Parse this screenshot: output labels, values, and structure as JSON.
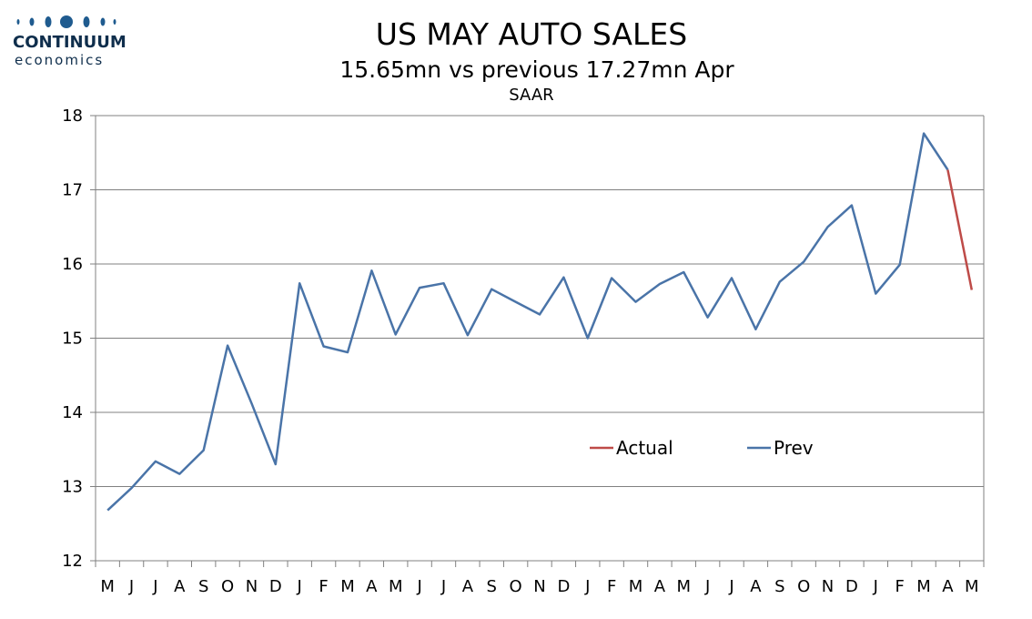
{
  "logo": {
    "name": "CONTINUUM",
    "sub": "economics"
  },
  "colors": {
    "actual": "#be4b48",
    "prev": "#4a74a8",
    "grid": "#808080",
    "logo": "#1f5b8f"
  },
  "chart_data": {
    "type": "line",
    "title": "US MAY AUTO SALES",
    "subtitle": "15.65mn vs previous 17.27mn Apr",
    "subtitle2": "SAAR",
    "xlabel": "",
    "ylabel": "",
    "ylim": [
      12,
      18
    ],
    "yticks": [
      12,
      13,
      14,
      15,
      16,
      17,
      18
    ],
    "grid": true,
    "legend_position": "center-right",
    "categories": [
      "M",
      "J",
      "J",
      "A",
      "S",
      "O",
      "N",
      "D",
      "J",
      "F",
      "M",
      "A",
      "M",
      "J",
      "J",
      "A",
      "S",
      "O",
      "N",
      "D",
      "J",
      "F",
      "M",
      "A",
      "M",
      "J",
      "J",
      "A",
      "S",
      "O",
      "N",
      "D",
      "J",
      "F",
      "M",
      "A",
      "M"
    ],
    "series": [
      {
        "name": "Actual",
        "color": "#be4b48",
        "values": [
          null,
          null,
          null,
          null,
          null,
          null,
          null,
          null,
          null,
          null,
          null,
          null,
          null,
          null,
          null,
          null,
          null,
          null,
          null,
          null,
          null,
          null,
          null,
          null,
          null,
          null,
          null,
          null,
          null,
          null,
          null,
          null,
          null,
          null,
          null,
          17.27,
          15.65
        ]
      },
      {
        "name": "Prev",
        "color": "#4a74a8",
        "values": [
          12.68,
          12.98,
          13.34,
          13.17,
          13.49,
          14.9,
          14.12,
          13.3,
          15.74,
          14.89,
          14.81,
          15.91,
          15.05,
          15.68,
          15.74,
          15.04,
          15.66,
          15.49,
          15.32,
          15.82,
          15.0,
          15.81,
          15.49,
          15.73,
          15.89,
          15.28,
          15.81,
          15.12,
          15.76,
          16.03,
          16.5,
          16.79,
          15.6,
          15.99,
          17.76,
          17.27,
          null
        ]
      }
    ]
  }
}
